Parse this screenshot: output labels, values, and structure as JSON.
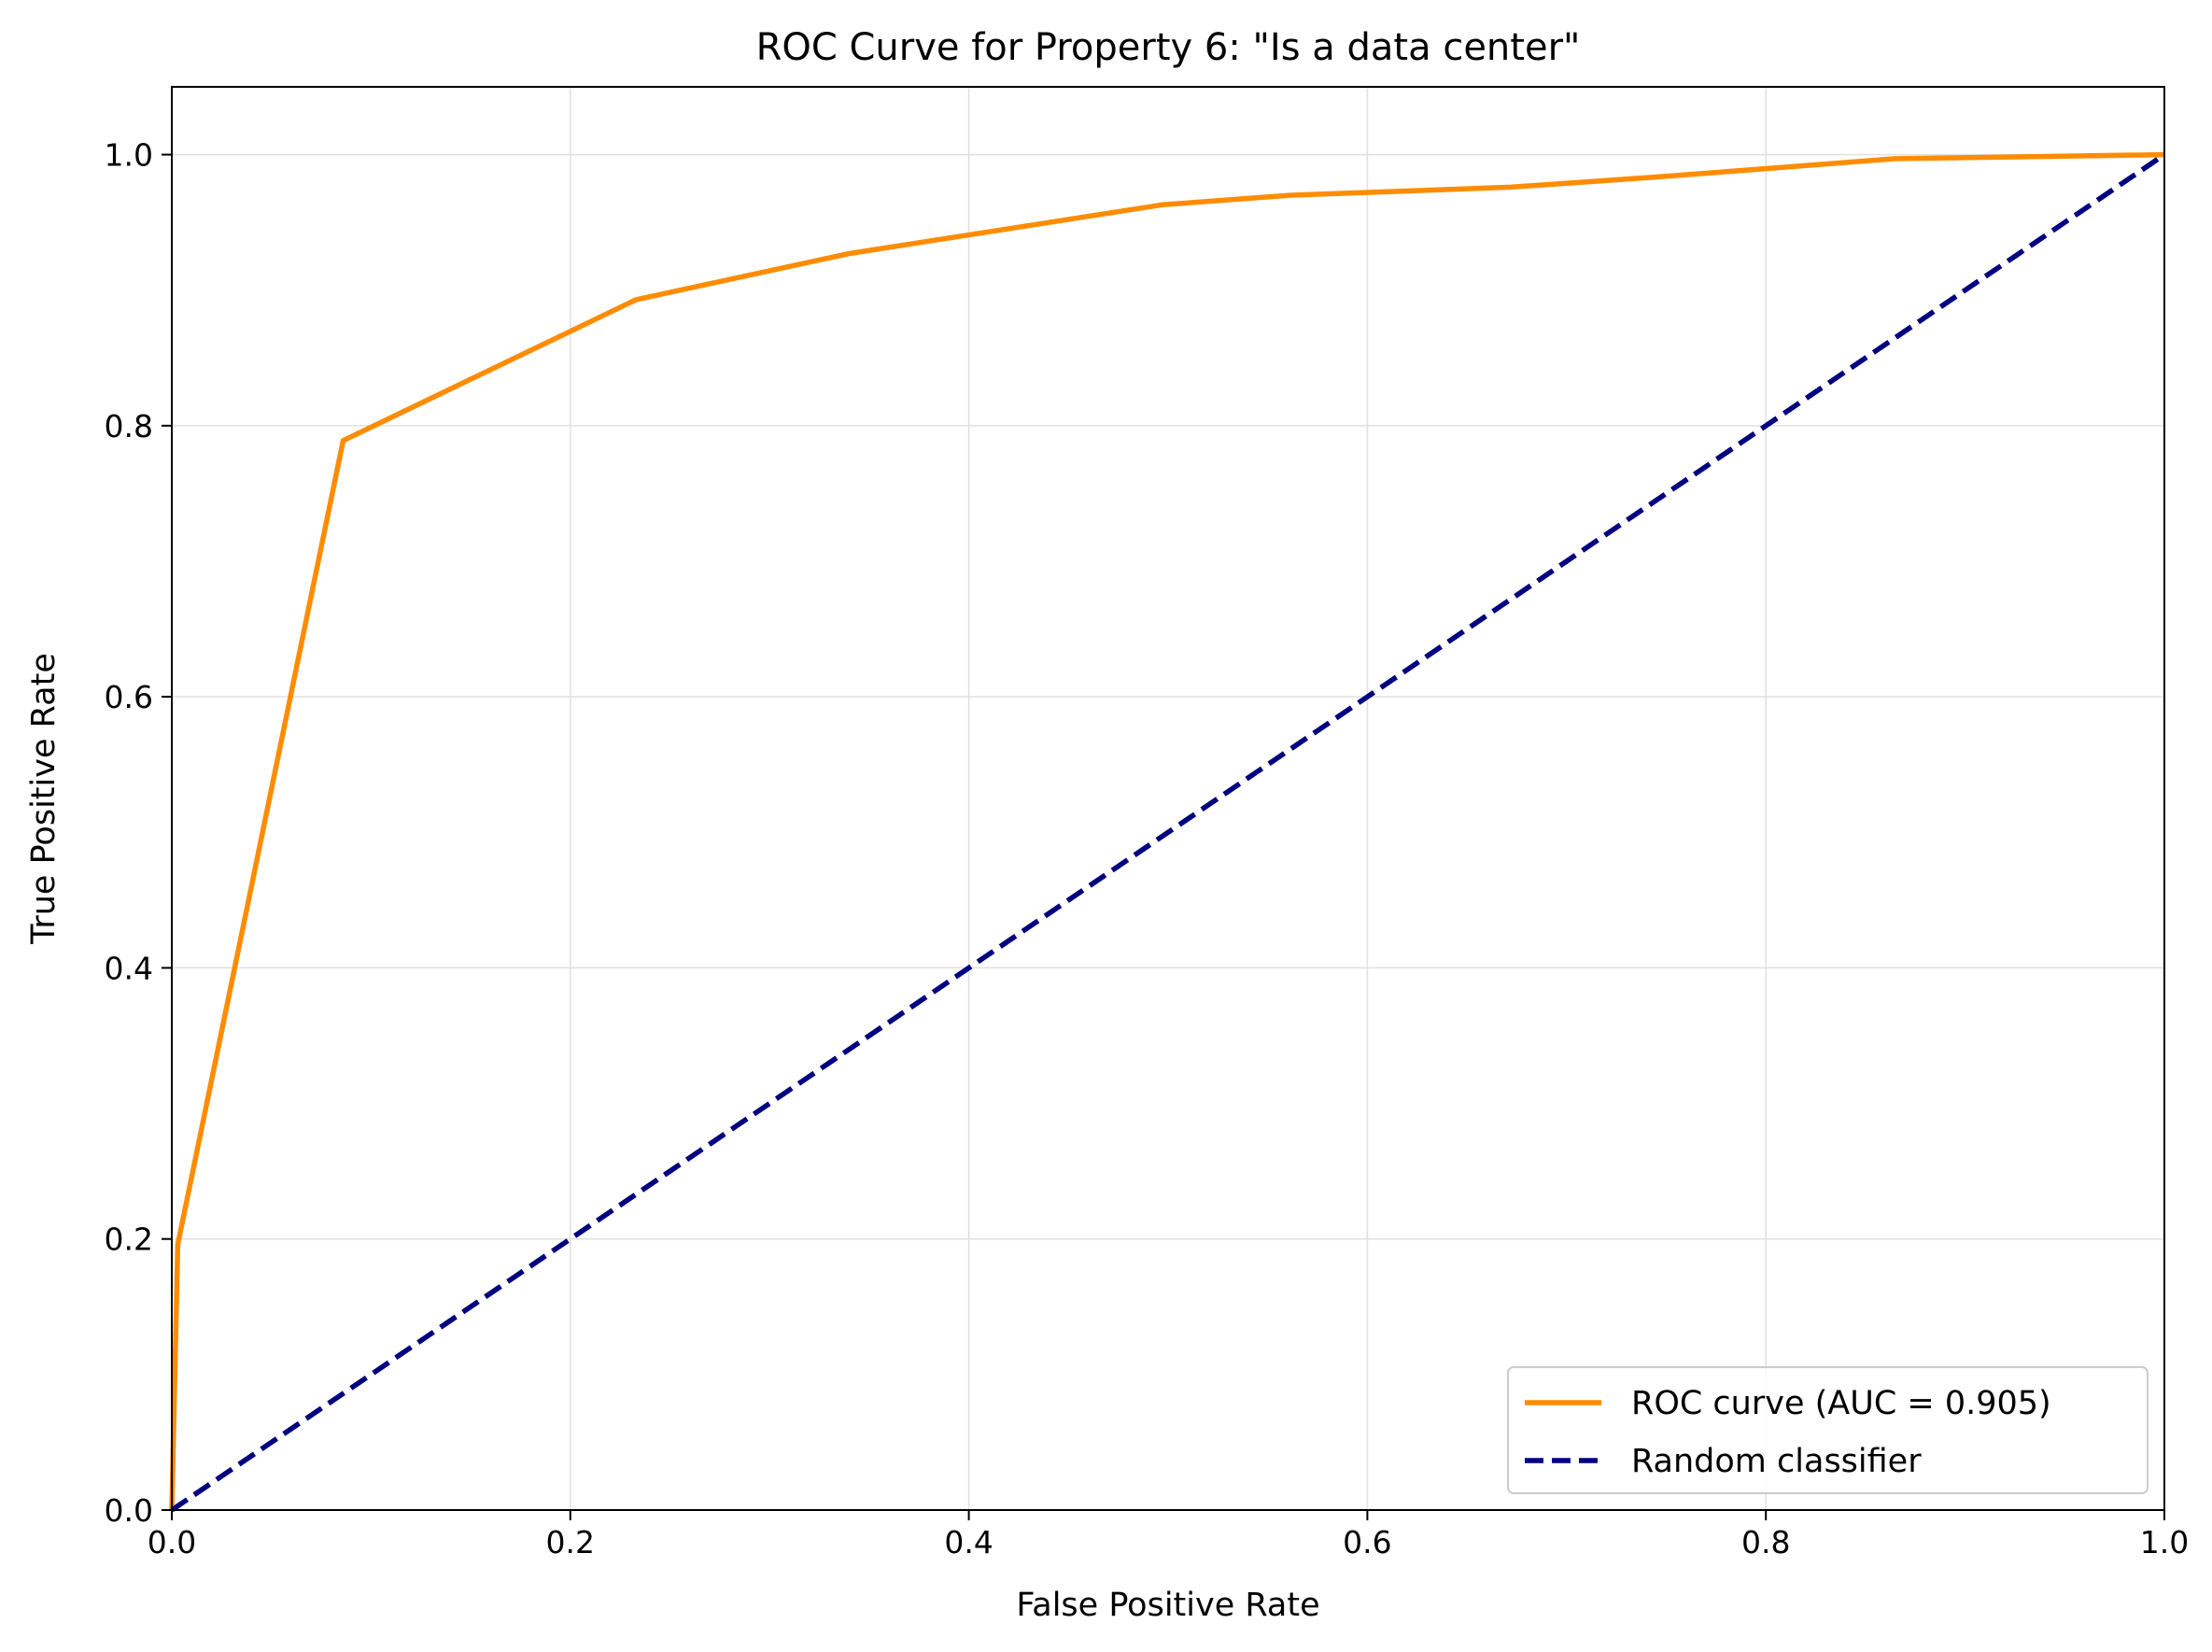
{
  "chart_data": {
    "type": "line",
    "title": "ROC Curve for Property 6: \"Is a data center\"",
    "xlabel": "False Positive Rate",
    "ylabel": "True Positive Rate",
    "xlim": [
      0.0,
      1.0
    ],
    "ylim": [
      0.0,
      1.05
    ],
    "xticks": [
      0.0,
      0.2,
      0.4,
      0.6,
      0.8,
      1.0
    ],
    "yticks": [
      0.0,
      0.2,
      0.4,
      0.6,
      0.8,
      1.0
    ],
    "xtick_labels": [
      "0.0",
      "0.2",
      "0.4",
      "0.6",
      "0.8",
      "1.0"
    ],
    "ytick_labels": [
      "0.0",
      "0.2",
      "0.4",
      "0.6",
      "0.8",
      "1.0"
    ],
    "grid": true,
    "legend_position": "lower-right",
    "series": [
      {
        "name": "ROC curve (AUC = 0.905)",
        "color": "#ff8c00",
        "style": "solid",
        "x": [
          0.0,
          0.0,
          0.003,
          0.086,
          0.233,
          0.34,
          0.497,
          0.561,
          0.672,
          0.75,
          0.865,
          1.0
        ],
        "y": [
          0.0,
          0.0,
          0.196,
          0.789,
          0.893,
          0.927,
          0.963,
          0.97,
          0.976,
          0.984,
          0.997,
          1.0
        ]
      },
      {
        "name": "Random classifier",
        "color": "#000080",
        "style": "dashed",
        "x": [
          0.0,
          1.0
        ],
        "y": [
          0.0,
          1.0
        ]
      }
    ]
  }
}
